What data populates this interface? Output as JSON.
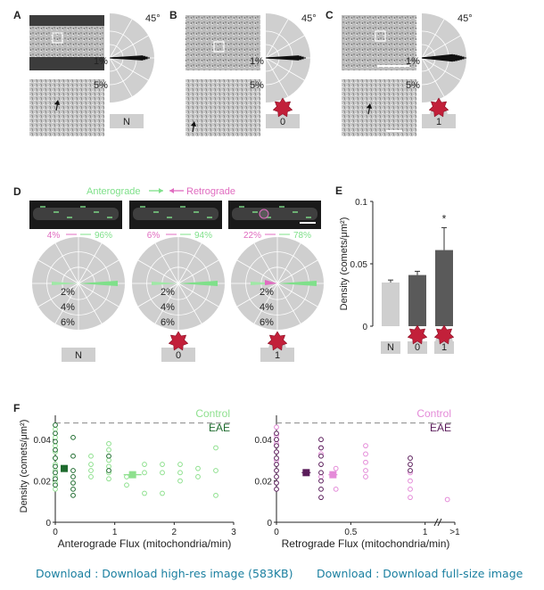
{
  "panel_letters": [
    "A",
    "B",
    "C",
    "D",
    "E",
    "F"
  ],
  "abc": {
    "angle_label": "45°",
    "ring_labels": [
      "1%",
      "5%"
    ],
    "conditions": [
      "N",
      "0",
      "1"
    ]
  },
  "d": {
    "legend_anterograde": "Anterograde",
    "legend_retrograde": "Retrograde",
    "ring_labels": [
      "2%",
      "4%",
      "6%"
    ],
    "percents": [
      {
        "retro": "4%",
        "antero": "96%"
      },
      {
        "retro": "6%",
        "antero": "94%"
      },
      {
        "retro": "22%",
        "antero": "78%"
      }
    ],
    "conditions": [
      "N",
      "0",
      "1"
    ],
    "colors": {
      "anterograde": "#7fe08a",
      "retrograde": "#e06cc0"
    }
  },
  "e": {
    "ylabel": "Density (comets/μm²)",
    "significance": "*",
    "chart_data": {
      "type": "bar",
      "categories": [
        "N",
        "0",
        "1"
      ],
      "values": [
        0.035,
        0.041,
        0.061
      ],
      "errors": [
        0.002,
        0.003,
        0.018
      ],
      "ylim": [
        0,
        0.1
      ],
      "yticks": [
        "0",
        "0.05",
        "0.1"
      ],
      "ylabel": "Density (comets/μm²)",
      "colors": [
        "#cfcfcf",
        "#5a5a5a",
        "#5a5a5a"
      ]
    }
  },
  "f": {
    "ylabel": "Density (comets/μm²)",
    "left": {
      "xlabel": "Anterograde Flux (mitochondria/min)",
      "legend": [
        {
          "name": "Control",
          "color": "#8ee08e"
        },
        {
          "name": "EAE",
          "color": "#1e6b2e"
        }
      ],
      "xticks": [
        "0",
        "1",
        "2",
        "3"
      ],
      "yticks": [
        "0",
        "0.02",
        "0.04"
      ]
    },
    "right": {
      "xlabel": "Retrograde Flux (mitochondria/min)",
      "legend": [
        {
          "name": "Control",
          "color": "#e48ad8"
        },
        {
          "name": "EAE",
          "color": "#5a1c5a"
        }
      ],
      "xticks": [
        "0",
        "0.5",
        "1",
        ">1"
      ],
      "yticks": [
        "0",
        "0.02",
        "0.04"
      ]
    },
    "chart_data": [
      {
        "type": "scatter",
        "xlabel": "Anterograde Flux (mitochondria/min)",
        "ylabel": "Density (comets/μm²)",
        "xlim": [
          0,
          3
        ],
        "ylim": [
          0,
          0.05
        ],
        "reference_line_y": 0.048,
        "series": [
          {
            "name": "Control",
            "points": [
              [
                0,
                0.045
              ],
              [
                0,
                0.041
              ],
              [
                0,
                0.037
              ],
              [
                0,
                0.034
              ],
              [
                0,
                0.031
              ],
              [
                0,
                0.028
              ],
              [
                0,
                0.025
              ],
              [
                0,
                0.022
              ],
              [
                0,
                0.019
              ],
              [
                0,
                0.016
              ],
              [
                0.6,
                0.032
              ],
              [
                0.6,
                0.028
              ],
              [
                0.6,
                0.025
              ],
              [
                0.6,
                0.022
              ],
              [
                0.9,
                0.038
              ],
              [
                0.9,
                0.035
              ],
              [
                0.9,
                0.03
              ],
              [
                0.9,
                0.027
              ],
              [
                0.9,
                0.024
              ],
              [
                0.9,
                0.021
              ],
              [
                1.2,
                0.022
              ],
              [
                1.2,
                0.018
              ],
              [
                1.5,
                0.028
              ],
              [
                1.5,
                0.024
              ],
              [
                1.5,
                0.014
              ],
              [
                1.8,
                0.028
              ],
              [
                1.8,
                0.024
              ],
              [
                1.8,
                0.014
              ],
              [
                2.1,
                0.028
              ],
              [
                2.1,
                0.024
              ],
              [
                2.1,
                0.02
              ],
              [
                2.4,
                0.026
              ],
              [
                2.4,
                0.022
              ],
              [
                2.7,
                0.036
              ],
              [
                2.7,
                0.025
              ],
              [
                2.7,
                0.013
              ]
            ]
          },
          {
            "name": "EAE",
            "points": [
              [
                0,
                0.047
              ],
              [
                0,
                0.043
              ],
              [
                0,
                0.039
              ],
              [
                0,
                0.035
              ],
              [
                0,
                0.031
              ],
              [
                0,
                0.027
              ],
              [
                0,
                0.024
              ],
              [
                0,
                0.021
              ],
              [
                0,
                0.018
              ],
              [
                0.3,
                0.041
              ],
              [
                0.3,
                0.032
              ],
              [
                0.3,
                0.025
              ],
              [
                0.3,
                0.022
              ],
              [
                0.3,
                0.019
              ],
              [
                0.3,
                0.016
              ],
              [
                0.3,
                0.013
              ],
              [
                0.9,
                0.032
              ],
              [
                0.9,
                0.025
              ]
            ]
          }
        ],
        "means": [
          {
            "name": "EAE",
            "x": 0.15,
            "y": 0.026,
            "xerr": 0.04,
            "yerr": 0.002
          },
          {
            "name": "Control",
            "x": 1.3,
            "y": 0.023,
            "xerr": 0.15,
            "yerr": 0.002
          }
        ]
      },
      {
        "type": "scatter",
        "xlabel": "Retrograde Flux (mitochondria/min)",
        "ylabel": "Density (comets/μm²)",
        "xlim": [
          0,
          1.2
        ],
        "ylim": [
          0,
          0.05
        ],
        "reference_line_y": 0.048,
        "series": [
          {
            "name": "Control",
            "points": [
              [
                0,
                0.046
              ],
              [
                0,
                0.042
              ],
              [
                0,
                0.038
              ],
              [
                0,
                0.034
              ],
              [
                0,
                0.03
              ],
              [
                0.3,
                0.036
              ],
              [
                0.3,
                0.033
              ],
              [
                0.3,
                0.022
              ],
              [
                0.4,
                0.026
              ],
              [
                0.4,
                0.016
              ],
              [
                0.6,
                0.037
              ],
              [
                0.6,
                0.033
              ],
              [
                0.6,
                0.029
              ],
              [
                0.6,
                0.025
              ],
              [
                0.6,
                0.022
              ],
              [
                0.9,
                0.024
              ],
              [
                0.9,
                0.02
              ],
              [
                0.9,
                0.016
              ],
              [
                0.9,
                0.012
              ],
              [
                1.15,
                0.011
              ]
            ]
          },
          {
            "name": "EAE",
            "points": [
              [
                0,
                0.043
              ],
              [
                0,
                0.04
              ],
              [
                0,
                0.037
              ],
              [
                0,
                0.034
              ],
              [
                0,
                0.031
              ],
              [
                0,
                0.028
              ],
              [
                0,
                0.025
              ],
              [
                0,
                0.022
              ],
              [
                0,
                0.019
              ],
              [
                0,
                0.016
              ],
              [
                0.3,
                0.04
              ],
              [
                0.3,
                0.036
              ],
              [
                0.3,
                0.032
              ],
              [
                0.3,
                0.028
              ],
              [
                0.3,
                0.024
              ],
              [
                0.3,
                0.02
              ],
              [
                0.3,
                0.016
              ],
              [
                0.3,
                0.012
              ],
              [
                0.9,
                0.031
              ],
              [
                0.9,
                0.028
              ],
              [
                0.9,
                0.025
              ]
            ]
          }
        ],
        "means": [
          {
            "name": "EAE",
            "x": 0.2,
            "y": 0.024,
            "xerr": 0.03,
            "yerr": 0.002
          },
          {
            "name": "Control",
            "x": 0.38,
            "y": 0.023,
            "xerr": 0.03,
            "yerr": 0.002
          }
        ]
      }
    ]
  },
  "downloads": {
    "highres": "Download : Download high-res image (583KB)",
    "fullsize": "Download : Download full-size image"
  }
}
